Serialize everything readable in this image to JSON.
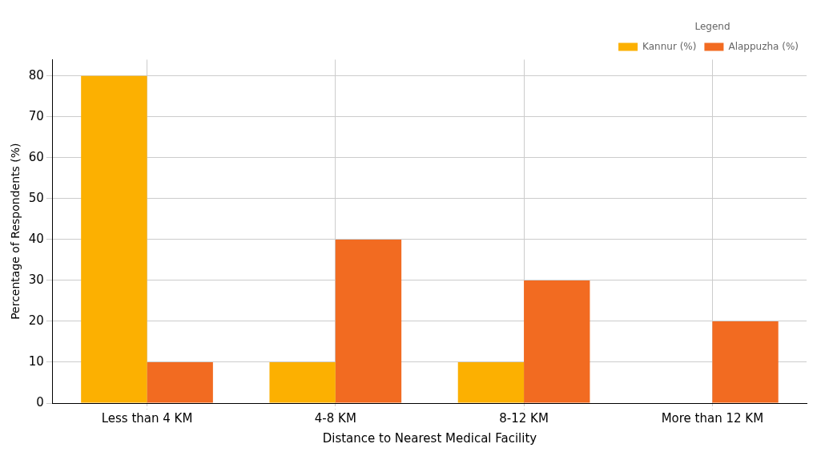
{
  "chart_data": {
    "type": "bar",
    "xlabel": "Distance to Nearest Medical Facility",
    "ylabel": "Percentage of Respondents (%)",
    "legend_title": "Legend",
    "categories": [
      "Less than 4 KM",
      "4-8 KM",
      "8-12 KM",
      "More than 12 KM"
    ],
    "series": [
      {
        "name": "Kannur (%)",
        "color": "#fcb001",
        "values": [
          80,
          10,
          10,
          0
        ]
      },
      {
        "name": "Alappuzha (%)",
        "color": "#f26b21",
        "values": [
          10,
          40,
          30,
          20
        ]
      }
    ],
    "ylim": [
      0,
      84
    ],
    "yticks": [
      0,
      10,
      20,
      30,
      40,
      50,
      60,
      70,
      80
    ],
    "grid": true,
    "legend": "top right"
  }
}
